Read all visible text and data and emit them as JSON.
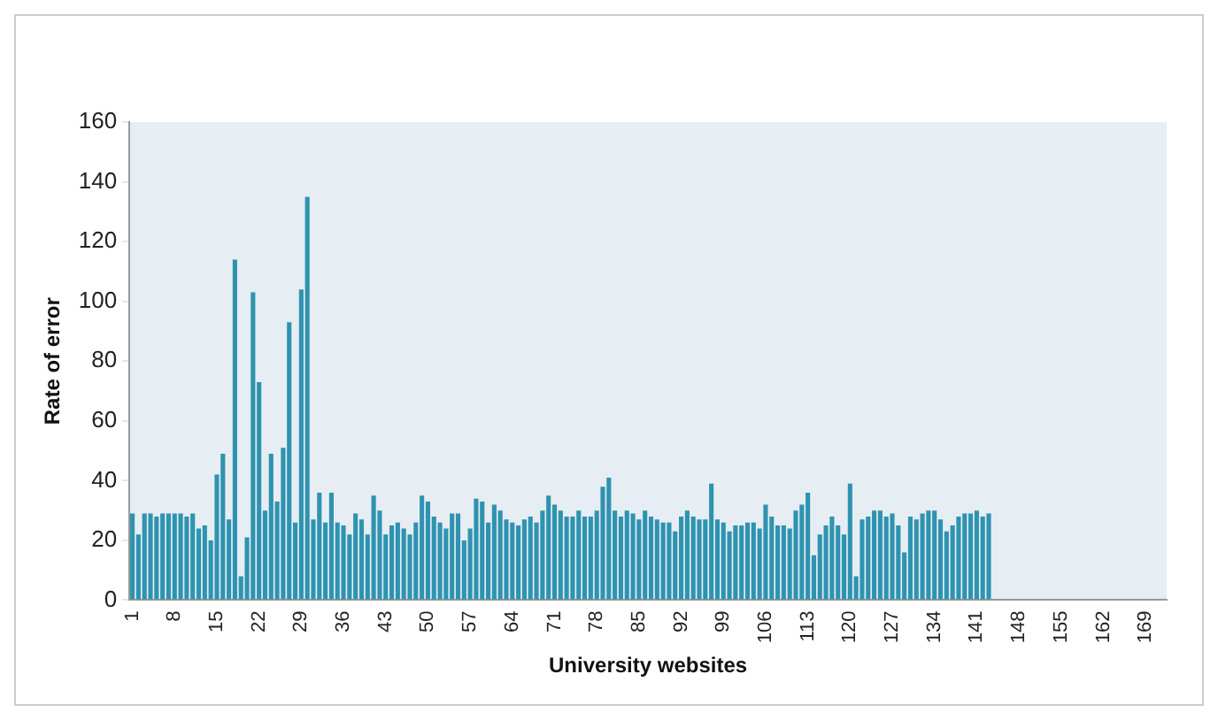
{
  "chart_data": {
    "type": "bar",
    "xlabel": "University websites",
    "ylabel": "Rate of error",
    "categories": [
      "1",
      null,
      null,
      null,
      null,
      null,
      null,
      "8",
      null,
      null,
      null,
      null,
      null,
      null,
      "15",
      null,
      null,
      null,
      null,
      null,
      null,
      "22",
      null,
      null,
      null,
      null,
      null,
      null,
      "29",
      null,
      null,
      null,
      null,
      null,
      null,
      "36",
      null,
      null,
      null,
      null,
      null,
      null,
      "43",
      null,
      null,
      null,
      null,
      null,
      null,
      "50",
      null,
      null,
      null,
      null,
      null,
      null,
      "57",
      null,
      null,
      null,
      null,
      null,
      null,
      "64",
      null,
      null,
      null,
      null,
      null,
      null,
      "71",
      null,
      null,
      null,
      null,
      null,
      null,
      "78",
      null,
      null,
      null,
      null,
      null,
      null,
      "85",
      null,
      null,
      null,
      null,
      null,
      null,
      "92",
      null,
      null,
      null,
      null,
      null,
      null,
      "99",
      null,
      null,
      null,
      null,
      null,
      null,
      "106",
      null,
      null,
      null,
      null,
      null,
      null,
      "113",
      null,
      null,
      null,
      null,
      null,
      null,
      "120",
      null,
      null,
      null,
      null,
      null,
      null,
      "127",
      null,
      null,
      null,
      null,
      null,
      null,
      "134",
      null,
      null,
      null,
      null,
      null,
      null,
      "141",
      null,
      null,
      null,
      null,
      null,
      null,
      "148",
      null,
      null,
      null,
      null,
      null,
      null,
      "155",
      null,
      null,
      null,
      null,
      null,
      null,
      "162",
      null,
      null,
      null,
      null,
      null,
      null,
      "169",
      null,
      null,
      null
    ],
    "values": [
      29,
      22,
      29,
      29,
      28,
      29,
      29,
      29,
      29,
      28,
      29,
      24,
      25,
      20,
      42,
      49,
      27,
      114,
      8,
      21,
      103,
      73,
      30,
      49,
      33,
      51,
      93,
      26,
      104,
      135,
      27,
      36,
      26,
      36,
      26,
      25,
      22,
      29,
      27,
      22,
      35,
      30,
      22,
      25,
      26,
      24,
      22,
      26,
      35,
      33,
      28,
      26,
      24,
      29,
      29,
      20,
      24,
      34,
      33,
      26,
      32,
      30,
      27,
      26,
      25,
      27,
      28,
      26,
      30,
      35,
      32,
      30,
      28,
      28,
      30,
      28,
      28,
      30,
      38,
      41,
      30,
      28,
      30,
      29,
      27,
      30,
      28,
      27,
      26,
      26,
      23,
      28,
      30,
      28,
      27,
      27,
      39,
      27,
      26,
      23,
      25,
      25,
      26,
      26,
      24,
      32,
      28,
      25,
      25,
      24,
      30,
      32,
      36,
      15,
      22,
      25,
      28,
      25,
      22,
      39,
      8,
      27,
      28,
      30,
      30,
      28,
      29,
      25,
      16,
      28,
      27,
      29,
      30,
      30,
      27,
      23,
      25,
      28,
      29,
      29,
      30,
      28,
      29,
      null,
      null,
      null,
      null,
      null,
      null,
      null,
      null,
      null,
      null,
      null,
      null,
      null,
      null,
      null,
      null,
      null,
      null,
      null,
      null,
      null,
      null,
      null,
      null,
      null,
      null,
      null,
      null,
      null
    ],
    "color": "#2e93b0",
    "ylim": [
      0,
      160
    ],
    "yticks": [
      0,
      20,
      40,
      60,
      80,
      100,
      120,
      140,
      160
    ],
    "grid": false,
    "legend": false
  }
}
